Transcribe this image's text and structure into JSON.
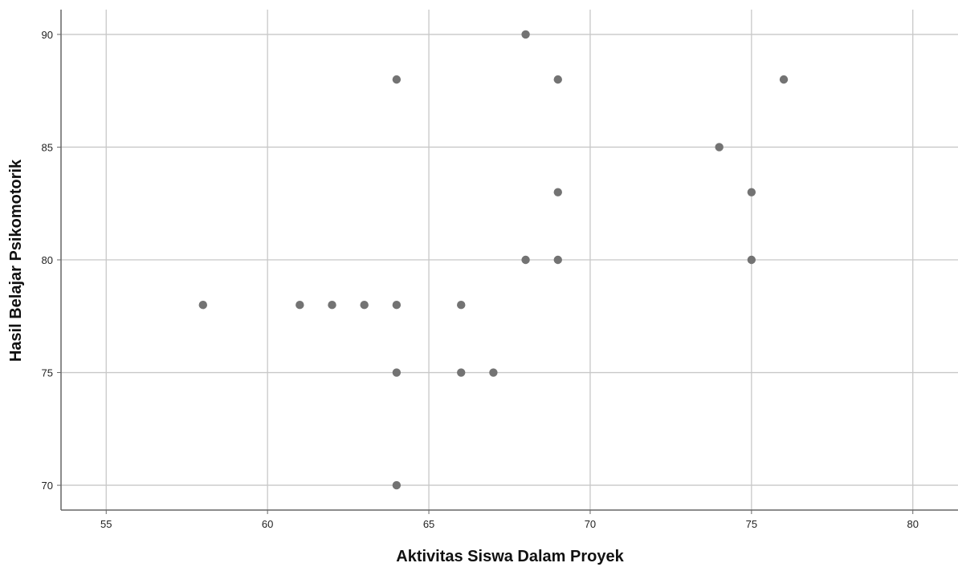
{
  "chart_data": {
    "type": "scatter",
    "title": "",
    "xlabel": "Aktivitas Siswa Dalam Proyek",
    "ylabel": "Hasil Belajar Psikomotorik",
    "xlim": [
      53.6,
      81.4
    ],
    "ylim": [
      68.9,
      91.1
    ],
    "xticks": [
      55,
      60,
      65,
      70,
      75,
      80
    ],
    "yticks": [
      70,
      75,
      80,
      85,
      90
    ],
    "grid": true,
    "legend": "none",
    "point_color": "#737373",
    "grid_color": "#c8c8c8",
    "axis_color": "#666666",
    "points": [
      {
        "x": 58,
        "y": 78
      },
      {
        "x": 61,
        "y": 78
      },
      {
        "x": 62,
        "y": 78
      },
      {
        "x": 63,
        "y": 78
      },
      {
        "x": 64,
        "y": 88
      },
      {
        "x": 64,
        "y": 78
      },
      {
        "x": 64,
        "y": 75
      },
      {
        "x": 64,
        "y": 70
      },
      {
        "x": 66,
        "y": 78
      },
      {
        "x": 66,
        "y": 75
      },
      {
        "x": 67,
        "y": 75
      },
      {
        "x": 68,
        "y": 90
      },
      {
        "x": 68,
        "y": 80
      },
      {
        "x": 69,
        "y": 88
      },
      {
        "x": 69,
        "y": 83
      },
      {
        "x": 69,
        "y": 80
      },
      {
        "x": 74,
        "y": 85
      },
      {
        "x": 75,
        "y": 83
      },
      {
        "x": 75,
        "y": 80
      },
      {
        "x": 76,
        "y": 88
      }
    ]
  }
}
